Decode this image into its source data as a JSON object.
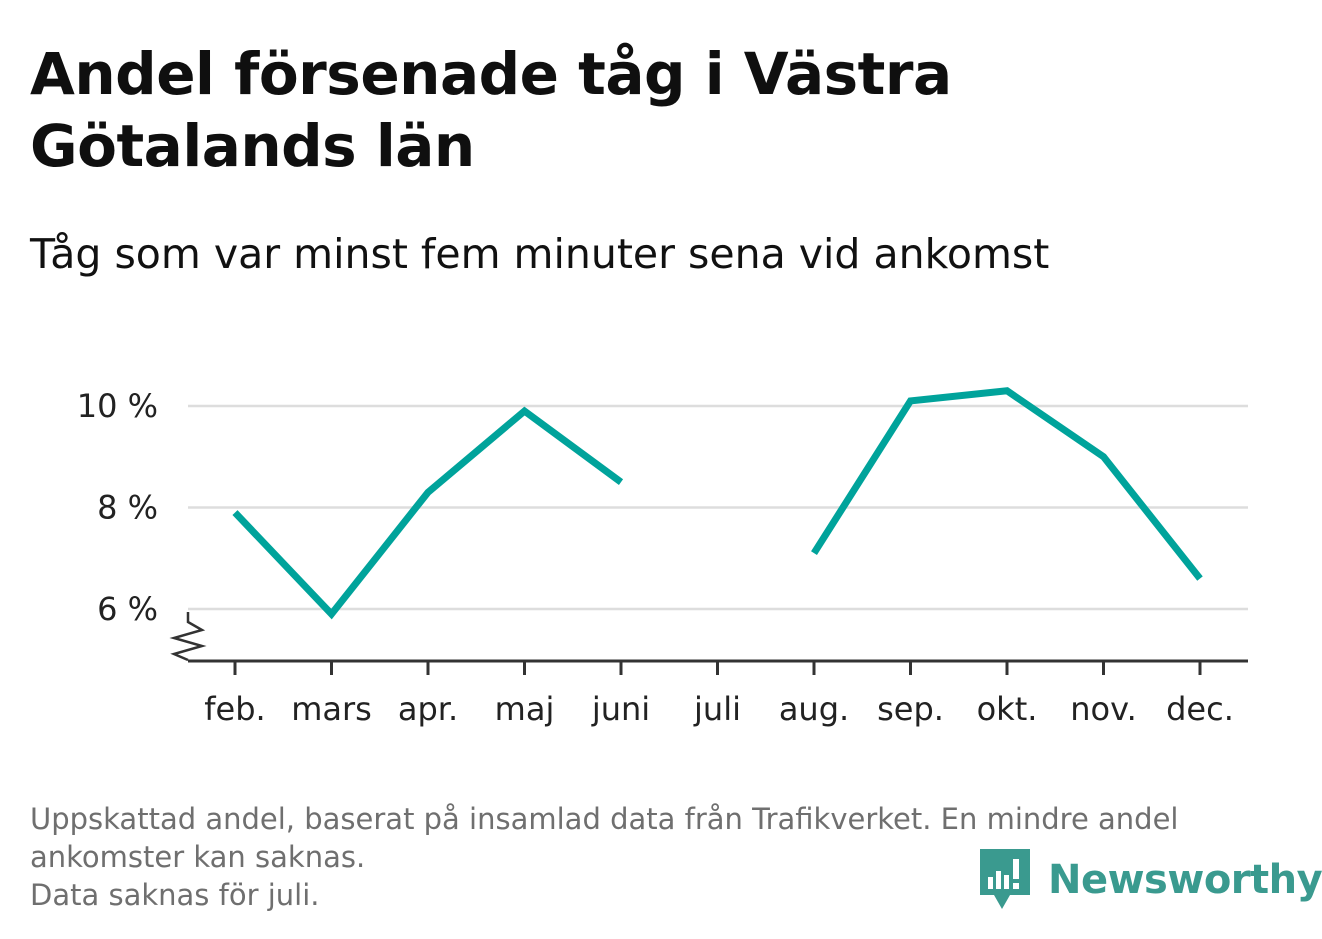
{
  "title": "Andel försenade tåg i Västra Götalands län",
  "subtitle": "Tåg som var minst fem minuter sena vid ankomst",
  "footer": {
    "notes": [
      "Uppskattad andel, baserat på insamlad data från Trafikverket. En mindre andel",
      "ankomster kan saknas.",
      "Data saknas för juli."
    ]
  },
  "brand": {
    "name": "Newsworthy",
    "icon": "newsworthy-logo-icon",
    "color": "#3a9a8f"
  },
  "colors": {
    "line": "#00a39b",
    "grid": "#dddddd",
    "axis": "#333333"
  },
  "chart_data": {
    "type": "line",
    "title": "Andel försenade tåg i Västra Götalands län",
    "subtitle": "Tåg som var minst fem minuter sena vid ankomst",
    "xlabel": "",
    "ylabel": "",
    "categories": [
      "feb.",
      "mars",
      "apr.",
      "maj",
      "juni",
      "juli",
      "aug.",
      "sep.",
      "okt.",
      "nov.",
      "dec."
    ],
    "series": [
      {
        "values": [
          7.9,
          5.9,
          8.3,
          9.9,
          8.5,
          null,
          7.1,
          10.1,
          10.3,
          9.0,
          6.6
        ]
      }
    ],
    "ylim": [
      5,
      10.5
    ],
    "yticks": [
      6,
      8,
      10
    ],
    "ytick_labels": [
      "6 %",
      "8 %",
      "10 %"
    ],
    "grid": true,
    "axis_break": true,
    "legend": "none"
  }
}
